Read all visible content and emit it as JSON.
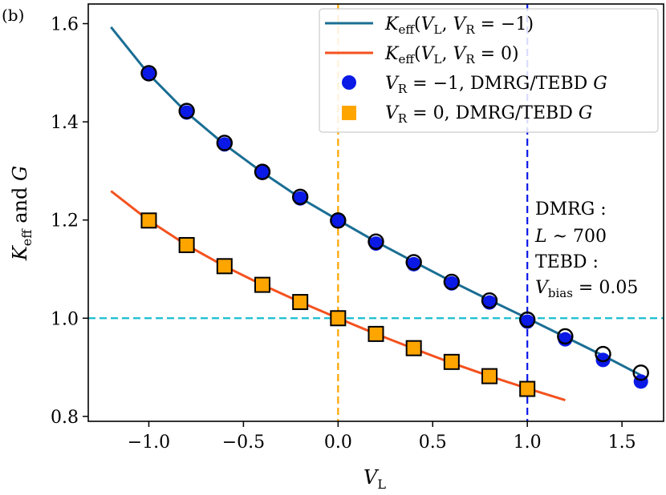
{
  "panel_label": "(b)",
  "annotation": [
    "DMRG :",
    "L ~ 700",
    "TEBD :",
    "V_bias = 0.05"
  ],
  "chart_data": {
    "type": "line",
    "title": "",
    "xlabel": "V_L",
    "ylabel": "K_eff and G",
    "xlim": [
      -1.32,
      1.72
    ],
    "ylim": [
      0.79,
      1.64
    ],
    "xticks": [
      -1.0,
      -0.5,
      0.0,
      0.5,
      1.0,
      1.5
    ],
    "xtick_labels": [
      "−1.0",
      "−0.5",
      "0.0",
      "0.5",
      "1.0",
      "1.5"
    ],
    "yticks": [
      0.8,
      1.0,
      1.2,
      1.4,
      1.6
    ],
    "ytick_labels": [
      "0.8",
      "1.0",
      "1.2",
      "1.4",
      "1.6"
    ],
    "grid": false,
    "legend_position": "top-right",
    "series": [
      {
        "name": "K_eff(V_L, V_R = −1)",
        "kind": "line",
        "color": "#1a6e94",
        "x": [
          -1.2,
          -1.0,
          -0.8,
          -0.6,
          -0.4,
          -0.2,
          0.0,
          0.2,
          0.4,
          0.6,
          0.8,
          1.0,
          1.2,
          1.4,
          1.6
        ],
        "y": [
          1.593,
          1.497,
          1.419,
          1.354,
          1.297,
          1.245,
          1.2,
          1.156,
          1.115,
          1.075,
          1.037,
          1.0,
          0.962,
          0.924,
          0.884
        ]
      },
      {
        "name": "K_eff(V_L, V_R = 0)",
        "kind": "line",
        "color": "#f4511e",
        "x": [
          -1.2,
          -1.0,
          -0.8,
          -0.6,
          -0.4,
          -0.2,
          0.0,
          0.2,
          0.4,
          0.6,
          0.8,
          1.0,
          1.2
        ],
        "y": [
          1.259,
          1.199,
          1.149,
          1.106,
          1.068,
          1.033,
          1.0,
          0.968,
          0.938,
          0.909,
          0.882,
          0.857,
          0.833
        ]
      },
      {
        "name": "V_R = −1, DMRG/TEBD G",
        "kind": "scatter",
        "marker": "circle",
        "color": "#0a19e6",
        "x": [
          -1.0,
          -0.8,
          -0.6,
          -0.4,
          -0.2,
          0.0,
          0.2,
          0.4,
          0.6,
          0.8,
          1.0,
          1.2,
          1.4,
          1.6
        ],
        "y": [
          1.497,
          1.419,
          1.354,
          1.296,
          1.244,
          1.198,
          1.152,
          1.11,
          1.071,
          1.032,
          0.993,
          0.957,
          0.915,
          0.871
        ]
      },
      {
        "name": "V_R = −1, DMRG (open markers)",
        "kind": "scatter",
        "marker": "open-circle",
        "in_legend": false,
        "color": "#000000",
        "x": [
          -1.0,
          -0.8,
          -0.6,
          -0.4,
          -0.2,
          0.0,
          0.2,
          0.4,
          0.6,
          0.8,
          1.0,
          1.2,
          1.4,
          1.6
        ],
        "y": [
          1.499,
          1.422,
          1.357,
          1.298,
          1.247,
          1.199,
          1.156,
          1.114,
          1.074,
          1.036,
          0.997,
          0.963,
          0.927,
          0.889
        ]
      },
      {
        "name": "V_R = 0, DMRG/TEBD G",
        "kind": "scatter",
        "marker": "square",
        "color": "#ffa500",
        "x": [
          -1.0,
          -0.8,
          -0.6,
          -0.4,
          -0.2,
          0.0,
          0.2,
          0.4,
          0.6,
          0.8,
          1.0
        ],
        "y": [
          1.199,
          1.149,
          1.106,
          1.068,
          1.033,
          1.0,
          0.968,
          0.939,
          0.911,
          0.882,
          0.856
        ]
      }
    ],
    "reference_lines": [
      {
        "orientation": "horizontal",
        "value": 1.0,
        "color": "#17becf"
      },
      {
        "orientation": "vertical",
        "value": 0.0,
        "color": "#ffa500"
      },
      {
        "orientation": "vertical",
        "value": 1.0,
        "color": "#0a19e6"
      }
    ]
  }
}
